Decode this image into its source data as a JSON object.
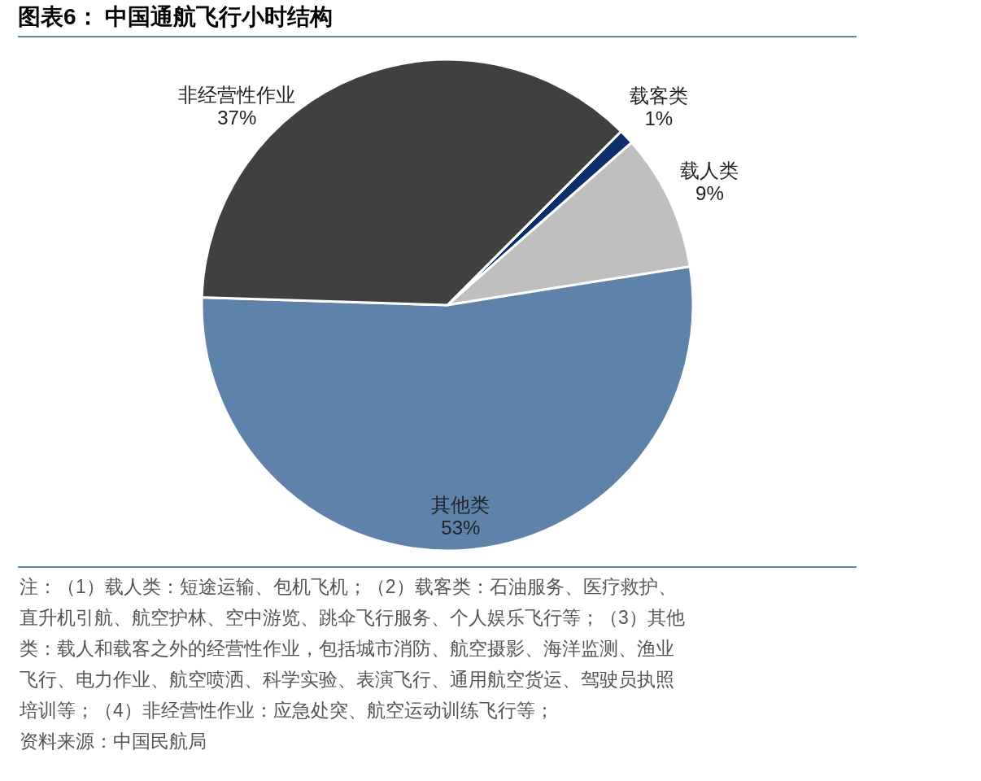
{
  "chart_data": {
    "type": "pie",
    "title": "图表6： 中国通航飞行小时结构",
    "categories": [
      "载客类",
      "载人类",
      "其他类",
      "非经营性作业"
    ],
    "values": [
      1,
      9,
      53,
      37
    ],
    "value_labels": [
      "1%",
      "9%",
      "53%",
      "37%"
    ],
    "colors": [
      "#0b2f6b",
      "#bfbfbf",
      "#5f82ab",
      "#404040"
    ],
    "annotations": [
      "注：（1）载人类：短途运输、包机飞机；（2）载客类：石油服务、医疗救护、",
      "直升机引航、航空护林、空中游览、跳伞飞行服务、个人娱乐飞行等；（3）其他",
      "类：载人和载客之外的经营性作业，包括城市消防、航空摄影、海洋监测、渔业",
      "飞行、电力作业、航空喷洒、科学实验、表演飞行、通用航空货运、驾驶员执照",
      "培训等；（4）非经营性作业：应急处突、航空运动训练飞行等；",
      "资料来源：中国民航局"
    ]
  }
}
